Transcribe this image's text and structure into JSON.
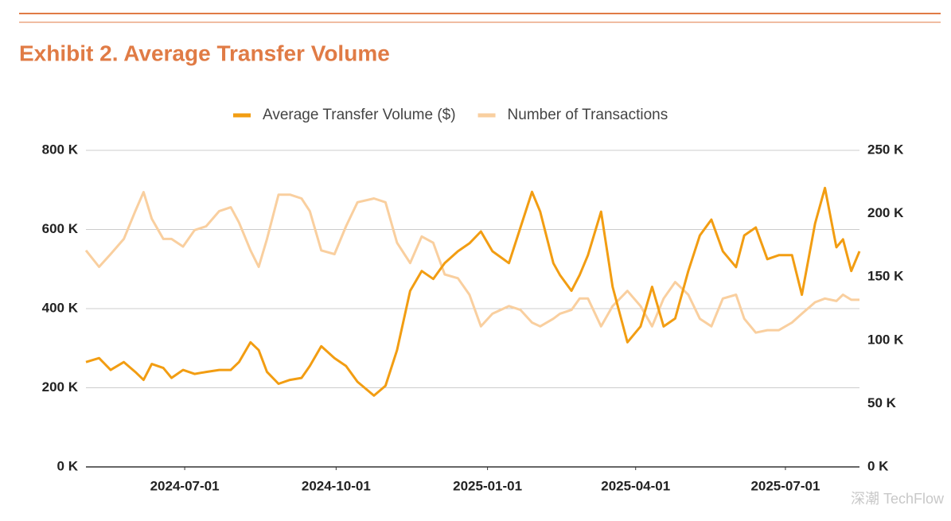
{
  "chart_data": {
    "type": "line",
    "title": "Exhibit 2. Average Transfer Volume",
    "watermark": "深潮 TechFlow",
    "x": [
      "2024-05-02",
      "2024-05-10",
      "2024-05-17",
      "2024-05-25",
      "2024-06-01",
      "2024-06-06",
      "2024-06-11",
      "2024-06-18",
      "2024-06-23",
      "2024-06-30",
      "2024-07-07",
      "2024-07-14",
      "2024-07-22",
      "2024-07-29",
      "2024-08-03",
      "2024-08-10",
      "2024-08-15",
      "2024-08-20",
      "2024-08-27",
      "2024-09-03",
      "2024-09-10",
      "2024-09-15",
      "2024-09-22",
      "2024-09-30",
      "2024-10-07",
      "2024-10-14",
      "2024-10-24",
      "2024-10-31",
      "2024-11-07",
      "2024-11-15",
      "2024-11-22",
      "2024-11-29",
      "2024-12-06",
      "2024-12-14",
      "2024-12-21",
      "2024-12-28",
      "2025-01-04",
      "2025-01-14",
      "2025-01-21",
      "2025-01-28",
      "2025-02-02",
      "2025-02-10",
      "2025-02-14",
      "2025-02-21",
      "2025-02-26",
      "2025-03-03",
      "2025-03-11",
      "2025-03-18",
      "2025-03-27",
      "2025-04-04",
      "2025-04-11",
      "2025-04-18",
      "2025-04-25",
      "2025-05-03",
      "2025-05-10",
      "2025-05-17",
      "2025-05-24",
      "2025-06-01",
      "2025-06-06",
      "2025-06-13",
      "2025-06-20",
      "2025-06-27",
      "2025-07-05",
      "2025-07-11",
      "2025-07-19",
      "2025-07-25",
      "2025-08-01",
      "2025-08-05",
      "2025-08-10",
      "2025-08-15"
    ],
    "series": [
      {
        "name": "Average Transfer Volume ($)",
        "color": "#f29d12",
        "axis": "y",
        "values": [
          265000,
          275000,
          245000,
          265000,
          240000,
          220000,
          260000,
          250000,
          225000,
          245000,
          235000,
          240000,
          245000,
          245000,
          265000,
          315000,
          295000,
          240000,
          210000,
          220000,
          225000,
          255000,
          305000,
          275000,
          255000,
          215000,
          180000,
          205000,
          295000,
          445000,
          495000,
          475000,
          515000,
          545000,
          565000,
          595000,
          545000,
          515000,
          605000,
          695000,
          645000,
          515000,
          485000,
          445000,
          485000,
          535000,
          645000,
          455000,
          315000,
          355000,
          455000,
          355000,
          375000,
          495000,
          585000,
          625000,
          545000,
          505000,
          585000,
          605000,
          525000,
          535000,
          535000,
          435000,
          615000,
          705000,
          555000,
          575000,
          495000,
          545000
        ]
      },
      {
        "name": "Number of Transactions",
        "color": "#f9cf9f",
        "axis": "y2",
        "values": [
          171000,
          158000,
          168000,
          180000,
          202000,
          217000,
          196000,
          180000,
          180000,
          174000,
          187000,
          190000,
          202000,
          205000,
          193000,
          171000,
          158000,
          180000,
          215000,
          215000,
          212000,
          202000,
          171000,
          168000,
          190000,
          209000,
          212000,
          209000,
          177000,
          161000,
          182000,
          177000,
          152000,
          149000,
          136000,
          111000,
          121000,
          127000,
          124000,
          114000,
          111000,
          117000,
          121000,
          124000,
          133000,
          133000,
          111000,
          127000,
          139000,
          127000,
          111000,
          133000,
          146000,
          136000,
          117000,
          111000,
          133000,
          136000,
          117000,
          106000,
          108000,
          108000,
          114000,
          121000,
          130000,
          133000,
          131000,
          136000,
          132000,
          132000
        ]
      }
    ],
    "xlim": [
      "2024-05-02",
      "2025-08-15"
    ],
    "xticks": [
      "2024-07-01",
      "2024-10-01",
      "2025-01-01",
      "2025-04-01",
      "2025-07-01"
    ],
    "ylim": [
      0,
      800000
    ],
    "yticks": [
      {
        "value": 0,
        "label": "0 K"
      },
      {
        "value": 200000,
        "label": "200 K"
      },
      {
        "value": 400000,
        "label": "400 K"
      },
      {
        "value": 600000,
        "label": "600 K"
      },
      {
        "value": 800000,
        "label": "800 K"
      }
    ],
    "y2lim": [
      0,
      250000
    ],
    "y2ticks": [
      {
        "value": 0,
        "label": "0 K"
      },
      {
        "value": 50000,
        "label": "50 K"
      },
      {
        "value": 100000,
        "label": "100 K"
      },
      {
        "value": 150000,
        "label": "150 K"
      },
      {
        "value": 200000,
        "label": "200 K"
      },
      {
        "value": 250000,
        "label": "250 K"
      }
    ],
    "grid": true,
    "legend": "top"
  }
}
